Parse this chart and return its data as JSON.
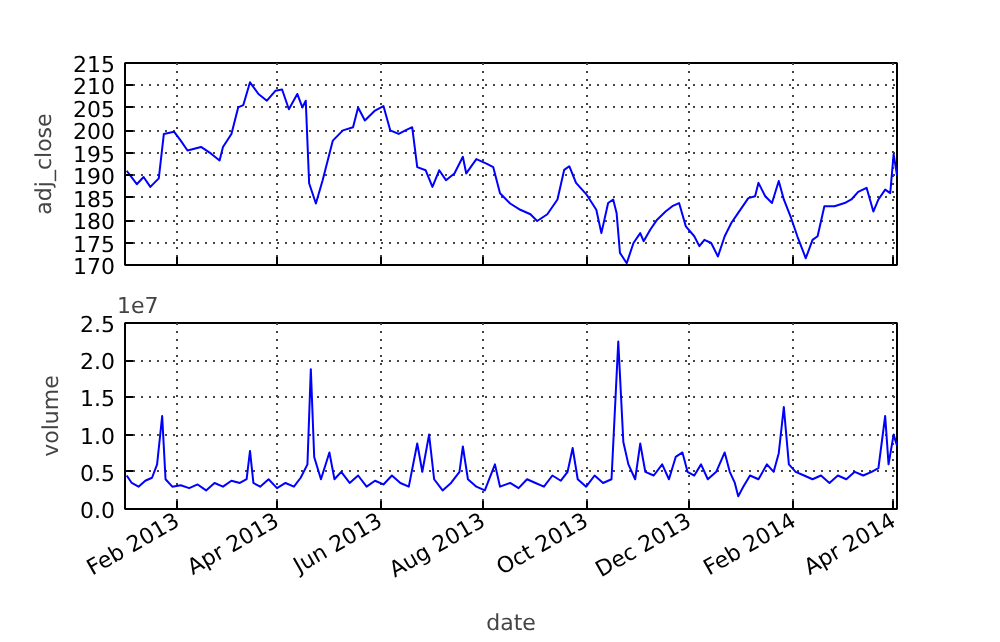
{
  "chart_data": [
    {
      "type": "line",
      "ylabel": "adj_close",
      "color": "#0000ff",
      "grid": true,
      "tick_labels": "y",
      "line_style": "solid",
      "xlim": [
        "2013-01-01",
        "2014-04-03"
      ],
      "xticks": [
        {
          "value": "2013-02-01",
          "label": null
        },
        {
          "value": "2013-04-01",
          "label": null
        },
        {
          "value": "2013-06-01",
          "label": null
        },
        {
          "value": "2013-08-01",
          "label": null
        },
        {
          "value": "2013-10-01",
          "label": null
        },
        {
          "value": "2013-12-01",
          "label": null
        },
        {
          "value": "2014-02-01",
          "label": null
        },
        {
          "value": "2014-04-01",
          "label": null
        }
      ],
      "ylim": [
        170,
        215
      ],
      "yticks": [
        170,
        175,
        180,
        185,
        190,
        195,
        200,
        205,
        210,
        215
      ],
      "x": [
        "2013-01-02",
        "2013-01-08",
        "2013-01-12",
        "2013-01-16",
        "2013-01-21",
        "2013-01-24",
        "2013-01-30",
        "2013-02-03",
        "2013-02-07",
        "2013-02-15",
        "2013-02-21",
        "2013-02-26",
        "2013-02-28",
        "2013-03-05",
        "2013-03-09",
        "2013-03-12",
        "2013-03-16",
        "2013-03-21",
        "2013-03-26",
        "2013-03-31",
        "2013-04-04",
        "2013-04-08",
        "2013-04-13",
        "2013-04-16",
        "2013-04-18",
        "2013-04-20",
        "2013-04-24",
        "2013-04-28",
        "2013-05-04",
        "2013-05-10",
        "2013-05-16",
        "2013-05-19",
        "2013-05-23",
        "2013-05-29",
        "2013-06-03",
        "2013-06-07",
        "2013-06-12",
        "2013-06-16",
        "2013-06-20",
        "2013-06-23",
        "2013-06-28",
        "2013-07-02",
        "2013-07-06",
        "2013-07-10",
        "2013-07-15",
        "2013-07-20",
        "2013-07-22",
        "2013-07-28",
        "2013-08-03",
        "2013-08-07",
        "2013-08-11",
        "2013-08-17",
        "2013-08-23",
        "2013-08-29",
        "2013-09-02",
        "2013-09-08",
        "2013-09-14",
        "2013-09-18",
        "2013-09-21",
        "2013-09-25",
        "2013-10-01",
        "2013-10-07",
        "2013-10-10",
        "2013-10-14",
        "2013-10-17",
        "2013-10-19",
        "2013-10-21",
        "2013-10-25",
        "2013-10-29",
        "2013-11-02",
        "2013-11-04",
        "2013-11-08",
        "2013-11-12",
        "2013-11-17",
        "2013-11-21",
        "2013-11-25",
        "2013-11-29",
        "2013-12-04",
        "2013-12-07",
        "2013-12-10",
        "2013-12-14",
        "2013-12-18",
        "2013-12-22",
        "2013-12-26",
        "2013-12-30",
        "2014-01-05",
        "2014-01-09",
        "2014-01-11",
        "2014-01-15",
        "2014-01-19",
        "2014-01-23",
        "2014-01-26",
        "2014-01-30",
        "2014-02-03",
        "2014-02-08",
        "2014-02-12",
        "2014-02-15",
        "2014-02-19",
        "2014-02-25",
        "2014-03-03",
        "2014-03-07",
        "2014-03-11",
        "2014-03-16",
        "2014-03-20",
        "2014-03-23",
        "2014-03-27",
        "2014-03-30",
        "2014-04-01",
        "2014-04-03"
      ],
      "values": [
        191,
        188,
        189.6,
        187.4,
        189.3,
        199.2,
        199.7,
        197.7,
        195.5,
        196.3,
        194.8,
        193.3,
        196.3,
        199.2,
        205.1,
        205.6,
        210.7,
        208.1,
        206.6,
        208.8,
        209.1,
        204.7,
        208.1,
        205.1,
        206.6,
        188.2,
        183.7,
        188.9,
        197.7,
        200,
        200.7,
        205.1,
        202.2,
        204.4,
        205.4,
        200,
        199.2,
        200,
        200.7,
        191.8,
        191.1,
        187.4,
        191.1,
        188.9,
        190.4,
        194.1,
        190.4,
        193.6,
        192.6,
        191.8,
        186,
        183.7,
        182.3,
        181.3,
        179.8,
        181.3,
        184.6,
        191.2,
        192,
        188.3,
        185.8,
        182.3,
        177.1,
        183.8,
        184.6,
        181.6,
        172.7,
        170.4,
        174.9,
        177.1,
        175.3,
        177.9,
        180.1,
        181.9,
        183.1,
        183.8,
        178.6,
        176.4,
        174.2,
        175.6,
        174.9,
        171.9,
        176.4,
        179.4,
        181.6,
        184.9,
        185.3,
        188.3,
        185.3,
        183.8,
        188.7,
        184.6,
        180.8,
        176.4,
        171.5,
        175.6,
        176.4,
        183.1,
        183.1,
        183.8,
        184.6,
        186.3,
        187.2,
        181.9,
        184.6,
        186.8,
        186,
        194.7,
        190
      ]
    },
    {
      "type": "line",
      "xlabel": "date",
      "ylabel": "volume",
      "color": "#0000ff",
      "grid": true,
      "line_style": "solid",
      "annotations": [
        "1e7"
      ],
      "xlim": [
        "2013-01-01",
        "2014-04-03"
      ],
      "xticks": [
        {
          "value": "2013-02-01",
          "label": "Feb 2013"
        },
        {
          "value": "2013-04-01",
          "label": "Apr 2013"
        },
        {
          "value": "2013-06-01",
          "label": "Jun 2013"
        },
        {
          "value": "2013-08-01",
          "label": "Aug 2013"
        },
        {
          "value": "2013-10-01",
          "label": "Oct 2013"
        },
        {
          "value": "2013-12-01",
          "label": "Dec 2013"
        },
        {
          "value": "2014-02-01",
          "label": "Feb 2014"
        },
        {
          "value": "2014-04-01",
          "label": "Apr 2014"
        }
      ],
      "ylim": [
        0,
        2.5
      ],
      "yticks": [
        {
          "value": 0,
          "label": "0.0"
        },
        0.5,
        {
          "value": 1,
          "label": "1.0"
        },
        1.5,
        {
          "value": 2,
          "label": "2.0"
        },
        2.5
      ],
      "x": [
        "2013-01-02",
        "2013-01-05",
        "2013-01-09",
        "2013-01-13",
        "2013-01-17",
        "2013-01-20",
        "2013-01-23",
        "2013-01-25",
        "2013-01-29",
        "2013-02-03",
        "2013-02-08",
        "2013-02-13",
        "2013-02-18",
        "2013-02-23",
        "2013-02-28",
        "2013-03-05",
        "2013-03-10",
        "2013-03-14",
        "2013-03-16",
        "2013-03-18",
        "2013-03-22",
        "2013-03-27",
        "2013-04-01",
        "2013-04-06",
        "2013-04-11",
        "2013-04-15",
        "2013-04-19",
        "2013-04-21",
        "2013-04-23",
        "2013-04-27",
        "2013-05-02",
        "2013-05-05",
        "2013-05-09",
        "2013-05-14",
        "2013-05-19",
        "2013-05-24",
        "2013-05-29",
        "2013-06-03",
        "2013-06-08",
        "2013-06-13",
        "2013-06-18",
        "2013-06-23",
        "2013-06-26",
        "2013-06-30",
        "2013-07-03",
        "2013-07-08",
        "2013-07-13",
        "2013-07-18",
        "2013-07-20",
        "2013-07-23",
        "2013-07-28",
        "2013-08-02",
        "2013-08-08",
        "2013-08-11",
        "2013-08-17",
        "2013-08-22",
        "2013-08-27",
        "2013-09-01",
        "2013-09-06",
        "2013-09-11",
        "2013-09-16",
        "2013-09-20",
        "2013-09-23",
        "2013-09-26",
        "2013-10-01",
        "2013-10-06",
        "2013-10-11",
        "2013-10-16",
        "2013-10-20",
        "2013-10-23",
        "2013-10-26",
        "2013-10-30",
        "2013-11-02",
        "2013-11-05",
        "2013-11-10",
        "2013-11-15",
        "2013-11-19",
        "2013-11-23",
        "2013-11-27",
        "2013-11-30",
        "2013-12-04",
        "2013-12-08",
        "2013-12-12",
        "2013-12-17",
        "2013-12-22",
        "2013-12-25",
        "2013-12-28",
        "2013-12-30",
        "2014-01-02",
        "2014-01-06",
        "2014-01-11",
        "2014-01-16",
        "2014-01-20",
        "2014-01-23",
        "2014-01-26",
        "2014-01-29",
        "2014-02-02",
        "2014-02-07",
        "2014-02-12",
        "2014-02-17",
        "2014-02-22",
        "2014-02-27",
        "2014-03-04",
        "2014-03-09",
        "2014-03-14",
        "2014-03-19",
        "2014-03-23",
        "2014-03-27",
        "2014-03-29",
        "2014-04-01",
        "2014-04-03"
      ],
      "values": [
        0.45,
        0.35,
        0.3,
        0.38,
        0.42,
        0.6,
        1.25,
        0.4,
        0.3,
        0.32,
        0.28,
        0.33,
        0.25,
        0.35,
        0.3,
        0.38,
        0.35,
        0.4,
        0.78,
        0.35,
        0.3,
        0.4,
        0.28,
        0.35,
        0.3,
        0.42,
        0.6,
        1.88,
        0.7,
        0.4,
        0.76,
        0.4,
        0.5,
        0.35,
        0.45,
        0.3,
        0.38,
        0.33,
        0.45,
        0.35,
        0.3,
        0.88,
        0.5,
        1.0,
        0.4,
        0.25,
        0.35,
        0.5,
        0.84,
        0.4,
        0.3,
        0.25,
        0.6,
        0.3,
        0.35,
        0.28,
        0.4,
        0.35,
        0.3,
        0.45,
        0.38,
        0.5,
        0.82,
        0.4,
        0.3,
        0.45,
        0.35,
        0.4,
        2.25,
        0.9,
        0.6,
        0.4,
        0.88,
        0.5,
        0.45,
        0.6,
        0.4,
        0.7,
        0.76,
        0.5,
        0.45,
        0.6,
        0.4,
        0.5,
        0.76,
        0.5,
        0.35,
        0.17,
        0.3,
        0.45,
        0.4,
        0.6,
        0.5,
        0.75,
        1.37,
        0.6,
        0.5,
        0.45,
        0.4,
        0.45,
        0.35,
        0.45,
        0.4,
        0.5,
        0.45,
        0.5,
        0.55,
        1.25,
        0.6,
        1.0,
        0.85
      ]
    }
  ]
}
